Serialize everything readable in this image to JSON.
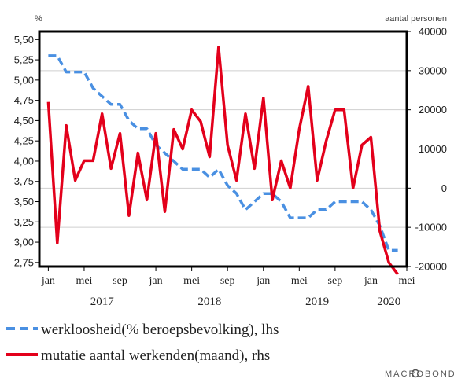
{
  "chart_data": {
    "type": "line",
    "left_unit": "%",
    "right_unit": "aantal personen",
    "left_axis": {
      "min": 2.7,
      "max": 5.6,
      "ticks": [
        2.75,
        3.0,
        3.25,
        3.5,
        3.75,
        4.0,
        4.25,
        4.5,
        4.75,
        5.0,
        5.25,
        5.5
      ],
      "tick_labels": [
        "2,75",
        "3,00",
        "3,25",
        "3,50",
        "3,75",
        "4,00",
        "4,25",
        "4,50",
        "4,75",
        "5,00",
        "5,25",
        "5,50"
      ]
    },
    "right_axis": {
      "min": -20000,
      "max": 40000,
      "ticks": [
        -20000,
        -10000,
        0,
        10000,
        20000,
        30000,
        40000
      ],
      "tick_labels": [
        "-20000",
        "-10000",
        "0",
        "10000",
        "20000",
        "30000",
        "40000"
      ]
    },
    "x_axis": {
      "start": "2016-12",
      "end": "2020-05",
      "ticks": [
        "2017-01",
        "2017-05",
        "2017-09",
        "2018-01",
        "2018-05",
        "2018-09",
        "2019-01",
        "2019-05",
        "2019-09",
        "2020-01",
        "2020-05"
      ],
      "tick_labels": [
        "jan",
        "mei",
        "sep",
        "jan",
        "mei",
        "sep",
        "jan",
        "mei",
        "sep",
        "jan",
        "mei"
      ],
      "years": [
        {
          "label": "2017",
          "at": "2017-07"
        },
        {
          "label": "2018",
          "at": "2018-07"
        },
        {
          "label": "2019",
          "at": "2019-07"
        },
        {
          "label": "2020",
          "at": "2020-03"
        }
      ]
    },
    "series": [
      {
        "name": "werkloosheid(% beroepsbevolking), lhs",
        "axis": "left",
        "color": "#4a90e2",
        "dash": true,
        "x": [
          "2017-01",
          "2017-02",
          "2017-03",
          "2017-04",
          "2017-05",
          "2017-06",
          "2017-07",
          "2017-08",
          "2017-09",
          "2017-10",
          "2017-11",
          "2017-12",
          "2018-01",
          "2018-02",
          "2018-03",
          "2018-04",
          "2018-05",
          "2018-06",
          "2018-07",
          "2018-08",
          "2018-09",
          "2018-10",
          "2018-11",
          "2018-12",
          "2019-01",
          "2019-02",
          "2019-03",
          "2019-04",
          "2019-05",
          "2019-06",
          "2019-07",
          "2019-08",
          "2019-09",
          "2019-10",
          "2019-11",
          "2019-12",
          "2020-01",
          "2020-02",
          "2020-03",
          "2020-04"
        ],
        "values": [
          5.3,
          5.3,
          5.1,
          5.1,
          5.1,
          4.9,
          4.8,
          4.7,
          4.7,
          4.5,
          4.4,
          4.4,
          4.2,
          4.1,
          4.0,
          3.9,
          3.9,
          3.9,
          3.8,
          3.9,
          3.7,
          3.6,
          3.4,
          3.5,
          3.6,
          3.6,
          3.5,
          3.3,
          3.3,
          3.3,
          3.4,
          3.4,
          3.5,
          3.5,
          3.5,
          3.5,
          3.4,
          3.2,
          2.9,
          2.9
        ]
      },
      {
        "name": "mutatie aantal werkenden(maand), rhs",
        "axis": "right",
        "color": "#e3001b",
        "dash": false,
        "x": [
          "2017-01",
          "2017-02",
          "2017-03",
          "2017-04",
          "2017-05",
          "2017-06",
          "2017-07",
          "2017-08",
          "2017-09",
          "2017-10",
          "2017-11",
          "2017-12",
          "2018-01",
          "2018-02",
          "2018-03",
          "2018-04",
          "2018-05",
          "2018-06",
          "2018-07",
          "2018-08",
          "2018-09",
          "2018-10",
          "2018-11",
          "2018-12",
          "2019-01",
          "2019-02",
          "2019-03",
          "2019-04",
          "2019-05",
          "2019-06",
          "2019-07",
          "2019-08",
          "2019-09",
          "2019-10",
          "2019-11",
          "2019-12",
          "2020-01",
          "2020-02",
          "2020-03",
          "2020-04"
        ],
        "values": [
          22000,
          -14000,
          16000,
          2000,
          7000,
          7000,
          19000,
          5000,
          14000,
          -7000,
          9000,
          -3000,
          14000,
          -6000,
          15000,
          10000,
          20000,
          17000,
          8000,
          36000,
          11000,
          2000,
          19000,
          5000,
          23000,
          -3000,
          7000,
          0,
          15000,
          26000,
          2000,
          12000,
          20000,
          20000,
          0,
          11000,
          13000,
          -11000,
          -19000,
          -22000
        ]
      }
    ]
  },
  "legend": [
    {
      "label": "werkloosheid(% beroepsbevolking), lhs",
      "color": "#4a90e2",
      "dash": true
    },
    {
      "label": "mutatie aantal werkenden(maand), rhs",
      "color": "#e3001b",
      "dash": false
    }
  ],
  "brand": "MACROBOND"
}
